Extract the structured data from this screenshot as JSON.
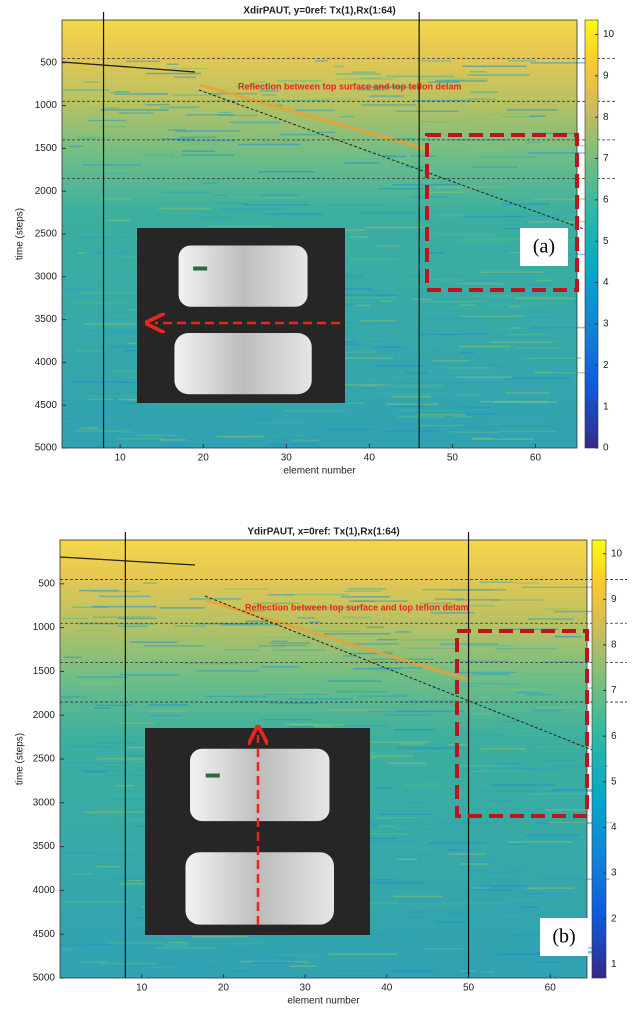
{
  "chart_data": [
    {
      "type": "heatmap",
      "title": "XdirPAUT, y=0ref: Tx(1),Rx(1:64)",
      "xlabel": "element number",
      "ylabel": "time (steps)",
      "xlim": [
        3,
        65
      ],
      "xticks": [
        10,
        20,
        30,
        40,
        50,
        60
      ],
      "ylim": [
        0,
        5000
      ],
      "yticks": [
        500,
        1000,
        1500,
        2000,
        2500,
        3000,
        3500,
        4000,
        4500,
        5000
      ],
      "clim": [
        0,
        10.35
      ],
      "cticks": [
        0,
        1,
        2,
        3,
        4,
        5,
        6,
        7,
        8,
        9,
        10
      ],
      "vlines": [
        8,
        46
      ],
      "hlines": [
        450,
        950,
        1400,
        1850
      ],
      "annotation": "Reflection between top surface and top teflon delam",
      "panel_label": "(a)"
    },
    {
      "type": "heatmap",
      "title": "YdirPAUT, x=0ref: Tx(1),Rx(1:64)",
      "xlabel": "element number",
      "ylabel": "time (steps)",
      "xlim": [
        0,
        64.5
      ],
      "xticks": [
        10,
        20,
        30,
        40,
        50,
        60
      ],
      "ylim": [
        0,
        5000
      ],
      "yticks": [
        500,
        1000,
        1500,
        2000,
        2500,
        3000,
        3500,
        4000,
        4500,
        5000
      ],
      "clim": [
        0.7,
        10.3
      ],
      "cticks": [
        1,
        2,
        3,
        4,
        5,
        6,
        7,
        8,
        9,
        10
      ],
      "vlines": [
        8,
        50
      ],
      "hlines": [
        450,
        950,
        1400,
        1850
      ],
      "annotation": "Reflection between top surface and top teflon delam",
      "panel_label": "(b)"
    }
  ]
}
